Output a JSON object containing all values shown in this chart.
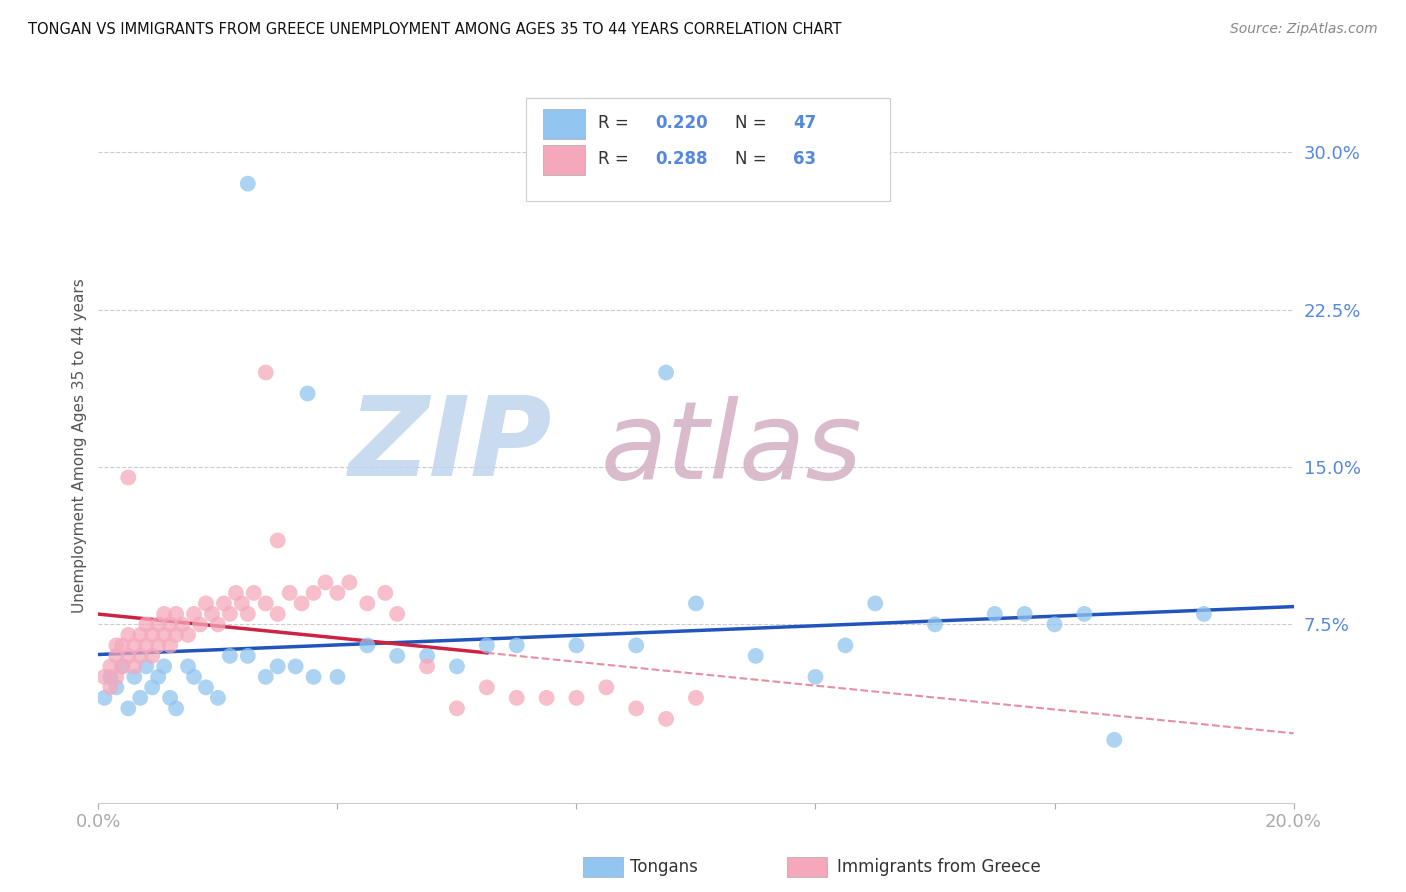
{
  "title": "TONGAN VS IMMIGRANTS FROM GREECE UNEMPLOYMENT AMONG AGES 35 TO 44 YEARS CORRELATION CHART",
  "source": "Source: ZipAtlas.com",
  "ylabel": "Unemployment Among Ages 35 to 44 years",
  "xlim": [
    0.0,
    0.2
  ],
  "ylim": [
    -0.01,
    0.33
  ],
  "yticks_right": [
    0.075,
    0.15,
    0.225,
    0.3
  ],
  "yticklabels_right": [
    "7.5%",
    "15.0%",
    "22.5%",
    "30.0%"
  ],
  "blue_color": "#92C5F0",
  "pink_color": "#F5A8BC",
  "blue_fill": "#92C5F0",
  "pink_fill": "#F5A8BC",
  "blue_line_color": "#2255BB",
  "pink_line_color": "#CC2244",
  "grid_color": "#CCCCCC",
  "tick_color": "#5588DD",
  "blue_R": 0.22,
  "blue_N": 47,
  "pink_R": 0.288,
  "pink_N": 63
}
